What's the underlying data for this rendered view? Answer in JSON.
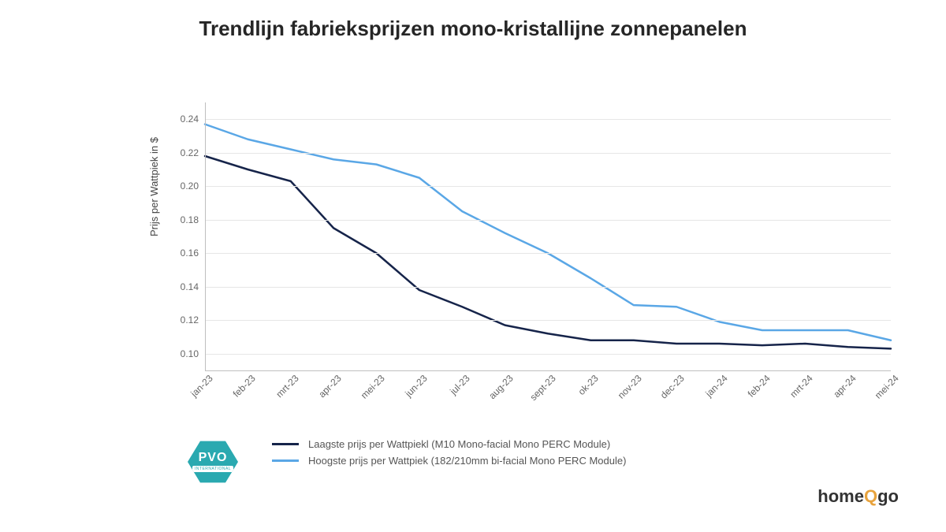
{
  "chart": {
    "type": "line",
    "title": "Trendlijn fabrieksprijzen mono-kristallijne zonnepanelen",
    "title_fontsize": 26,
    "title_fontweight": 700,
    "title_color": "#262626",
    "background_color": "#ffffff",
    "grid_color": "#e6e6e6",
    "axis_color": "#bfbfbf",
    "tick_fontsize": 12,
    "tick_color": "#666666",
    "ylabel": "Prijs per Wattpiek in $",
    "ylabel_fontsize": 13,
    "ylabel_color": "#444444",
    "ylim": [
      0.09,
      0.25
    ],
    "yticks": [
      0.1,
      0.12,
      0.14,
      0.16,
      0.18,
      0.2,
      0.22,
      0.24
    ],
    "xlabels": [
      "jan-23",
      "feb-23",
      "mrt-23",
      "apr-23",
      "mei-23",
      "jun-23",
      "jul-23",
      "aug-23",
      "sept-23",
      "ok-23",
      "nov-23",
      "dec-23",
      "jan-24",
      "feb-24",
      "mrt-24",
      "apr-24",
      "mei-24"
    ],
    "xlabel_rotation": -45,
    "line_width": 2.5,
    "series": [
      {
        "name": "Laagste prijs per Wattpiekl (M10 Mono-facial Mono PERC Module)",
        "color": "#16244a",
        "values": [
          0.218,
          0.21,
          0.203,
          0.175,
          0.16,
          0.138,
          0.128,
          0.117,
          0.112,
          0.108,
          0.108,
          0.106,
          0.106,
          0.105,
          0.106,
          0.104,
          0.103
        ]
      },
      {
        "name": "Hoogste prijs per Wattpiek (182/210mm bi-facial Mono PERC Module)",
        "color": "#5aa7e6",
        "values": [
          0.237,
          0.228,
          0.222,
          0.216,
          0.213,
          0.205,
          0.185,
          0.172,
          0.16,
          0.145,
          0.129,
          0.128,
          0.119,
          0.114,
          0.114,
          0.114,
          0.108
        ]
      }
    ]
  },
  "legend": {
    "font_size": 13,
    "text_color": "#555555",
    "items": [
      {
        "color": "#16244a",
        "label": "Laagste prijs per Wattpiekl (M10 Mono-facial Mono PERC Module)"
      },
      {
        "color": "#5aa7e6",
        "label": "Hoogste prijs per Wattpiek (182/210mm bi-facial Mono PERC Module)"
      }
    ]
  },
  "logos": {
    "pvo": {
      "main": "PVO",
      "sub": "INTERNATIONAL",
      "hex_color": "#2aa9b0",
      "text_color": "#ffffff"
    },
    "homeqgo": {
      "pre": "home",
      "q": "Q",
      "post": "go",
      "color": "#333333",
      "q_color": "#e8a33d"
    }
  }
}
